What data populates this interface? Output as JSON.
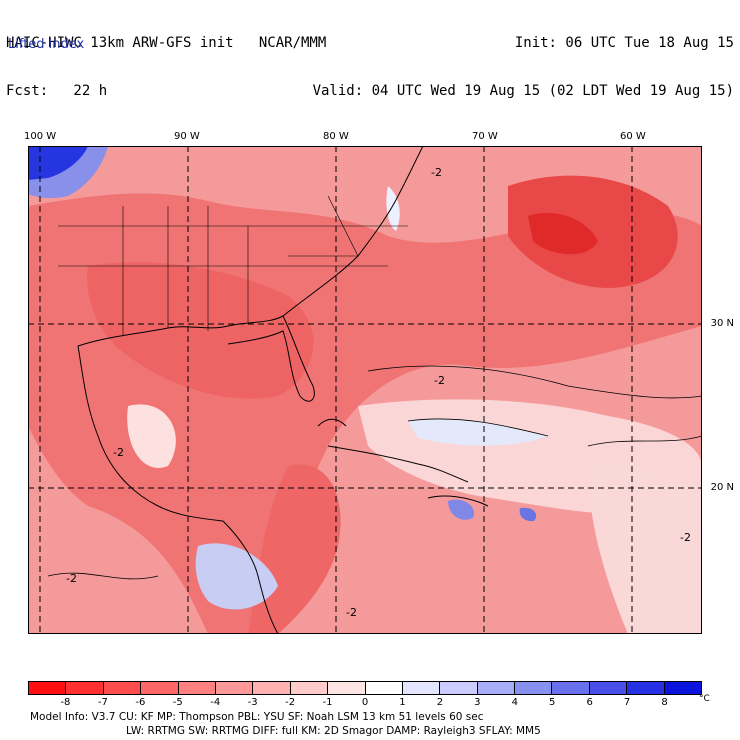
{
  "header": {
    "title": "HAIC-HIWC 13km ARW-GFS init   NCAR/MMM",
    "fcst": "Fcst:   22 h",
    "init": "Init: 06 UTC Tue 18 Aug 15",
    "valid": "Valid: 04 UTC Wed 19 Aug 15 (02 LDT Wed 19 Aug 15)",
    "variable": "Lifted index"
  },
  "map": {
    "lon_labels": [
      "100 W",
      "90 W",
      "80 W",
      "70 W",
      "60 W"
    ],
    "lat_labels": [
      "30 N",
      "20 N"
    ],
    "contour_labels": [
      "-2"
    ],
    "colors": {
      "strong_neg": "#e8303a",
      "mid_neg": "#f07a7a",
      "weak_neg": "#f8b8b8",
      "near_zero": "#ffffff",
      "weak_pos": "#d8dcf8",
      "mid_pos": "#8890e8",
      "strong_pos": "#2030e0",
      "gridline": "#000000"
    }
  },
  "colorbar": {
    "tick_labels": [
      "-8",
      "-7",
      "-6",
      "-5",
      "-4",
      "-3",
      "-2",
      "-1",
      "0",
      "1",
      "2",
      "3",
      "4",
      "5",
      "6",
      "7",
      "8"
    ],
    "unit": "°C",
    "colors": [
      "#ff1010",
      "#ff3030",
      "#ff4d4d",
      "#ff6868",
      "#ff8080",
      "#ff9898",
      "#ffb0b0",
      "#ffcccc",
      "#ffe4e4",
      "#ffffff",
      "#e4e6ff",
      "#ccccff",
      "#a8aef8",
      "#8890f0",
      "#6870ec",
      "#4850e8",
      "#2830e4",
      "#0a14dc"
    ]
  },
  "footer": {
    "line1": "Model Info: V3.7     CU: KF      MP: Thompson     PBL: YSU      SF: Noah LSM    13 km    51 levels   60 sec",
    "line2": "LW: RRTMG    SW: RRTMG   DIFF: full    KM: 2D Smagor DAMP: Rayleigh3   SFLAY: MM5"
  }
}
